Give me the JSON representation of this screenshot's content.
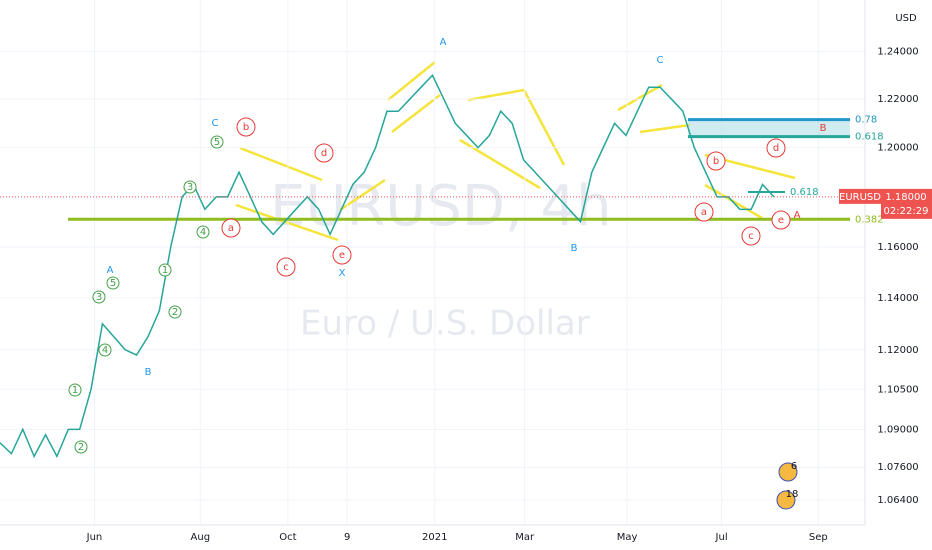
{
  "chart_data": {
    "type": "line",
    "symbol_title": "EURUSD, 4h",
    "subtitle": "Euro / U.S. Dollar",
    "currency": "USD",
    "log_scale": true,
    "grid": true,
    "color": "#26a69a",
    "x": [
      0,
      1,
      2,
      3,
      4,
      5,
      6,
      7,
      8,
      9,
      10,
      11,
      12,
      13,
      14,
      15,
      16,
      17,
      18,
      19,
      20,
      21,
      22,
      23,
      24,
      25,
      26,
      27,
      28,
      29,
      30,
      31,
      32,
      33,
      34,
      35,
      36,
      37,
      38,
      39,
      40,
      41,
      42,
      43,
      44,
      45,
      46,
      47,
      48,
      49,
      50,
      51,
      52,
      53,
      54,
      55,
      56,
      57,
      58,
      59,
      60,
      61,
      62,
      63,
      64,
      65,
      66,
      67,
      68
    ],
    "values": [
      1.085,
      1.081,
      1.09,
      1.08,
      1.088,
      1.08,
      1.09,
      1.09,
      1.105,
      1.13,
      1.125,
      1.12,
      1.118,
      1.125,
      1.135,
      1.16,
      1.18,
      1.185,
      1.175,
      1.18,
      1.18,
      1.19,
      1.18,
      1.17,
      1.165,
      1.17,
      1.175,
      1.18,
      1.175,
      1.165,
      1.175,
      1.185,
      1.19,
      1.2,
      1.215,
      1.215,
      1.22,
      1.225,
      1.23,
      1.22,
      1.21,
      1.205,
      1.2,
      1.205,
      1.215,
      1.21,
      1.195,
      1.19,
      1.185,
      1.18,
      1.175,
      1.17,
      1.19,
      1.2,
      1.21,
      1.205,
      1.215,
      1.225,
      1.225,
      1.22,
      1.215,
      1.2,
      1.19,
      1.18,
      1.18,
      1.175,
      1.175,
      1.185,
      1.18
    ],
    "xlim": [
      0,
      76
    ],
    "ylim": [
      1.055,
      1.262
    ],
    "xticks": [
      {
        "value": 8.3,
        "label": "Jun"
      },
      {
        "value": 17.6,
        "label": "Aug"
      },
      {
        "value": 25.3,
        "label": "Oct"
      },
      {
        "value": 30.5,
        "label": "9"
      },
      {
        "value": 38.2,
        "label": "2021"
      },
      {
        "value": 46.1,
        "label": "Mar"
      },
      {
        "value": 55.1,
        "label": "May"
      },
      {
        "value": 63.4,
        "label": "Jul"
      },
      {
        "value": 71.9,
        "label": "Sep"
      }
    ],
    "yticks": [
      {
        "value": 1.064,
        "label": "1.06400"
      },
      {
        "value": 1.076,
        "label": "1.07600"
      },
      {
        "value": 1.09,
        "label": "1.09000"
      },
      {
        "value": 1.105,
        "label": "1.10500"
      },
      {
        "value": 1.12,
        "label": "1.12000"
      },
      {
        "value": 1.14,
        "label": "1.14000"
      },
      {
        "value": 1.16,
        "label": "1.16000"
      },
      {
        "value": 1.2,
        "label": "1.20000"
      },
      {
        "value": 1.22,
        "label": "1.22000"
      },
      {
        "value": 1.24,
        "label": "1.24000"
      }
    ],
    "levels": [
      {
        "label": "0.78",
        "value": 1.2115,
        "color": "#2196c8"
      },
      {
        "label": "0.618",
        "value": 1.2045,
        "color": "#26a69a"
      },
      {
        "label": "0.382",
        "value": 1.171,
        "color": "#8fbc1e"
      }
    ],
    "last_price": {
      "symbol": "EURUSD",
      "value": 1.18,
      "label": "1.18000",
      "countdown": "02:22:29"
    },
    "wave_labels": {
      "major": [
        "A",
        "C",
        "C",
        "A",
        "B",
        "X",
        "B"
      ],
      "major_color": "#2196f3",
      "target": [
        "B",
        "A"
      ],
      "target_color": "#e53935",
      "minor": [
        "b",
        "d",
        "a",
        "c",
        "e",
        "a",
        "b",
        "d",
        "c",
        "e"
      ],
      "minor_color": "#e53935",
      "impulse": [
        "1",
        "2",
        "3",
        "4",
        "5",
        "1",
        "2",
        "3",
        "4",
        "5"
      ],
      "impulse_color": "#43a047",
      "retrace": "0.618"
    },
    "badges": [
      "6",
      "18"
    ]
  }
}
